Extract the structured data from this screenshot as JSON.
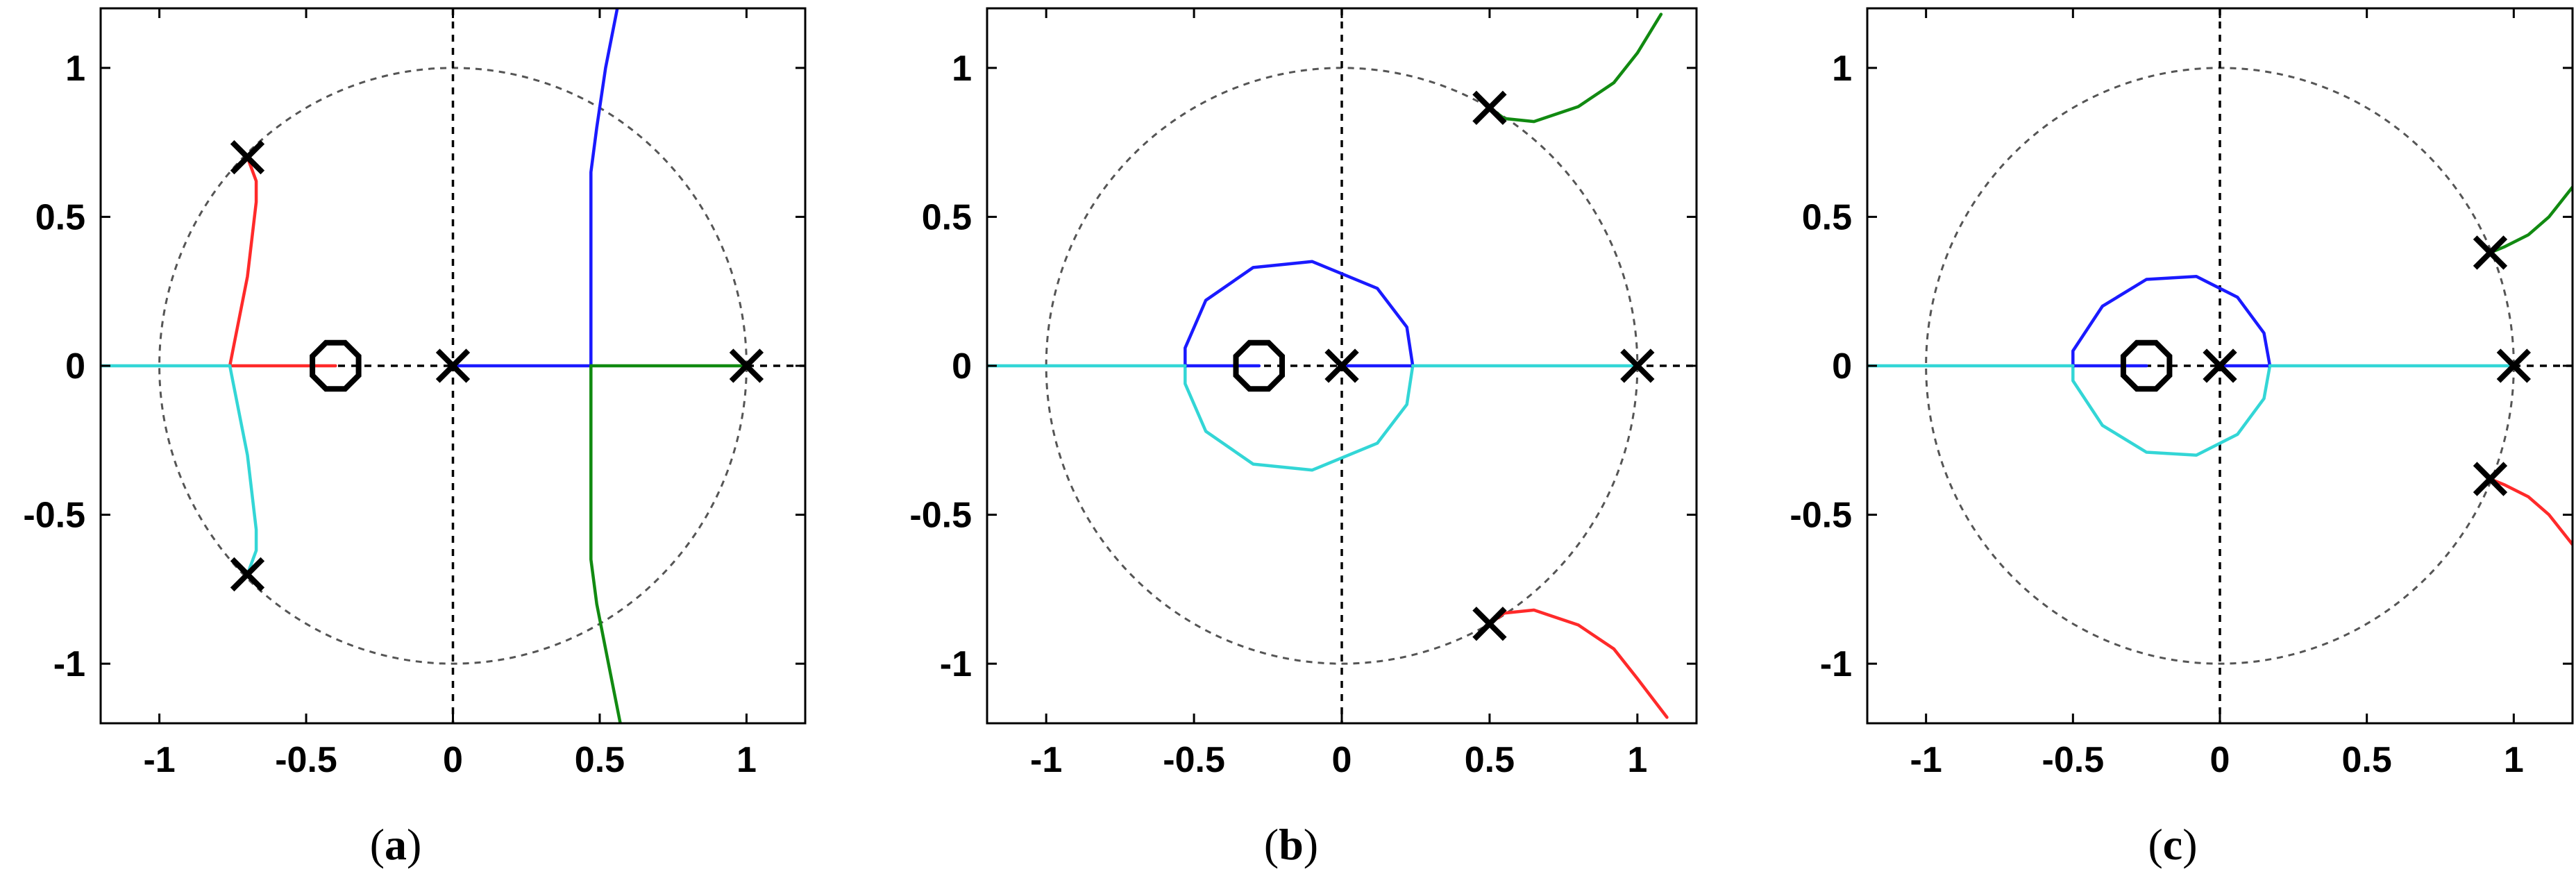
{
  "figure": {
    "colors": {
      "red": "#ff2a2a",
      "cyan": "#33d6d6",
      "blue": "#1a1aff",
      "green": "#118a11",
      "grid": "#000000",
      "unit_circle": "#555555",
      "axes_box": "#000000"
    }
  },
  "chart_data": [
    {
      "type": "line",
      "plot_kind": "root-locus",
      "caption": {
        "open": "(",
        "letter": "a",
        "close": ")"
      },
      "xlim": [
        -1.2,
        1.2
      ],
      "ylim": [
        -1.2,
        1.2
      ],
      "xticks": [
        -1,
        -0.5,
        0,
        0.5,
        1
      ],
      "xtick_labels": [
        "-1",
        "-0.5",
        "0",
        "0.5",
        "1"
      ],
      "yticks": [
        1,
        0.5,
        0,
        -0.5,
        -1
      ],
      "ytick_labels": [
        "1",
        "0.5",
        "0",
        "-0.5",
        "-1"
      ],
      "unit_circle": true,
      "zero_lines": true,
      "poles": [
        [
          -0.7,
          0.7
        ],
        [
          -0.7,
          -0.7
        ],
        [
          0,
          0
        ],
        [
          1,
          0
        ]
      ],
      "zeros": [
        [
          -0.4,
          0
        ]
      ],
      "series": [
        {
          "color_key": "red",
          "points": [
            [
              -0.7,
              0.7
            ],
            [
              -0.67,
              0.62
            ],
            [
              -0.67,
              0.55
            ],
            [
              -0.7,
              0.3
            ],
            [
              -0.75,
              0.05
            ],
            [
              -0.76,
              0
            ],
            [
              -0.4,
              0
            ]
          ]
        },
        {
          "color_key": "cyan",
          "points": [
            [
              -0.7,
              -0.7
            ],
            [
              -0.67,
              -0.62
            ],
            [
              -0.67,
              -0.55
            ],
            [
              -0.7,
              -0.3
            ],
            [
              -0.75,
              -0.05
            ],
            [
              -0.76,
              0
            ],
            [
              -1.2,
              0
            ]
          ]
        },
        {
          "color_key": "blue",
          "points": [
            [
              0,
              0
            ],
            [
              0.47,
              0
            ],
            [
              0.47,
              0.2
            ],
            [
              0.47,
              0.65
            ],
            [
              0.49,
              0.8
            ],
            [
              0.52,
              1.0
            ],
            [
              0.56,
              1.2
            ]
          ]
        },
        {
          "color_key": "green",
          "points": [
            [
              1,
              0
            ],
            [
              0.47,
              0
            ],
            [
              0.47,
              -0.2
            ],
            [
              0.47,
              -0.65
            ],
            [
              0.49,
              -0.8
            ],
            [
              0.53,
              -1.0
            ],
            [
              0.57,
              -1.2
            ]
          ]
        }
      ]
    },
    {
      "type": "line",
      "plot_kind": "root-locus",
      "caption": {
        "open": "(",
        "letter": "b",
        "close": ")"
      },
      "xlim": [
        -1.2,
        1.2
      ],
      "ylim": [
        -1.2,
        1.2
      ],
      "xticks": [
        -1,
        -0.5,
        0,
        0.5,
        1
      ],
      "xtick_labels": [
        "-1",
        "-0.5",
        "0",
        "0.5",
        "1"
      ],
      "yticks": [
        1,
        0.5,
        0,
        -0.5,
        -1
      ],
      "ytick_labels": [
        "1",
        "0.5",
        "0",
        "-0.5",
        "-1"
      ],
      "unit_circle": true,
      "zero_lines": true,
      "poles": [
        [
          0.5,
          0.866
        ],
        [
          0.5,
          -0.866
        ],
        [
          0,
          0
        ],
        [
          1,
          0
        ]
      ],
      "zeros": [
        [
          -0.28,
          0
        ]
      ],
      "series": [
        {
          "color_key": "blue",
          "points": [
            [
              0.24,
              0
            ],
            [
              0.22,
              0.13
            ],
            [
              0.12,
              0.26
            ],
            [
              -0.1,
              0.35
            ],
            [
              -0.3,
              0.33
            ],
            [
              -0.46,
              0.22
            ],
            [
              -0.53,
              0.06
            ],
            [
              -0.53,
              0
            ]
          ]
        },
        {
          "color_key": "cyan",
          "points": [
            [
              0.24,
              0
            ],
            [
              0.22,
              -0.13
            ],
            [
              0.12,
              -0.26
            ],
            [
              -0.1,
              -0.35
            ],
            [
              -0.3,
              -0.33
            ],
            [
              -0.46,
              -0.22
            ],
            [
              -0.53,
              -0.06
            ],
            [
              -0.53,
              0
            ]
          ]
        },
        {
          "color_key": "blue",
          "points": [
            [
              0,
              0
            ],
            [
              0.24,
              0
            ]
          ]
        },
        {
          "color_key": "blue",
          "points": [
            [
              -0.53,
              0
            ],
            [
              -0.28,
              0
            ]
          ]
        },
        {
          "color_key": "cyan",
          "points": [
            [
              -1.2,
              0
            ],
            [
              -0.53,
              0
            ]
          ]
        },
        {
          "color_key": "cyan",
          "points": [
            [
              0.24,
              0
            ],
            [
              1,
              0
            ]
          ]
        },
        {
          "color_key": "green",
          "points": [
            [
              0.5,
              0.866
            ],
            [
              0.55,
              0.83
            ],
            [
              0.65,
              0.82
            ],
            [
              0.8,
              0.87
            ],
            [
              0.92,
              0.95
            ],
            [
              1.0,
              1.05
            ],
            [
              1.08,
              1.18
            ]
          ]
        },
        {
          "color_key": "red",
          "points": [
            [
              0.5,
              -0.866
            ],
            [
              0.55,
              -0.83
            ],
            [
              0.65,
              -0.82
            ],
            [
              0.8,
              -0.87
            ],
            [
              0.92,
              -0.95
            ],
            [
              1.0,
              -1.05
            ],
            [
              1.1,
              -1.18
            ]
          ]
        }
      ]
    },
    {
      "type": "line",
      "plot_kind": "root-locus",
      "caption": {
        "open": "(",
        "letter": "c",
        "close": ")"
      },
      "xlim": [
        -1.2,
        1.2
      ],
      "ylim": [
        -1.2,
        1.2
      ],
      "xticks": [
        -1,
        -0.5,
        0,
        0.5,
        1
      ],
      "xtick_labels": [
        "-1",
        "-0.5",
        "0",
        "0.5",
        "1"
      ],
      "yticks": [
        1,
        0.5,
        0,
        -0.5,
        -1
      ],
      "ytick_labels": [
        "1",
        "0.5",
        "0",
        "-0.5",
        "-1"
      ],
      "unit_circle": true,
      "zero_lines": true,
      "poles": [
        [
          0.92,
          0.38
        ],
        [
          0.92,
          -0.38
        ],
        [
          0,
          0
        ],
        [
          1,
          0
        ]
      ],
      "zeros": [
        [
          -0.25,
          0
        ]
      ],
      "series": [
        {
          "color_key": "blue",
          "points": [
            [
              0.17,
              0
            ],
            [
              0.15,
              0.11
            ],
            [
              0.06,
              0.23
            ],
            [
              -0.08,
              0.3
            ],
            [
              -0.25,
              0.29
            ],
            [
              -0.4,
              0.2
            ],
            [
              -0.5,
              0.05
            ],
            [
              -0.5,
              0
            ]
          ]
        },
        {
          "color_key": "cyan",
          "points": [
            [
              0.17,
              0
            ],
            [
              0.15,
              -0.11
            ],
            [
              0.06,
              -0.23
            ],
            [
              -0.08,
              -0.3
            ],
            [
              -0.25,
              -0.29
            ],
            [
              -0.4,
              -0.2
            ],
            [
              -0.5,
              -0.05
            ],
            [
              -0.5,
              0
            ]
          ]
        },
        {
          "color_key": "blue",
          "points": [
            [
              0,
              0
            ],
            [
              0.17,
              0
            ]
          ]
        },
        {
          "color_key": "blue",
          "points": [
            [
              -0.5,
              0
            ],
            [
              -0.25,
              0
            ]
          ]
        },
        {
          "color_key": "cyan",
          "points": [
            [
              -1.2,
              0
            ],
            [
              -0.5,
              0
            ]
          ]
        },
        {
          "color_key": "cyan",
          "points": [
            [
              0.17,
              0
            ],
            [
              1,
              0
            ]
          ]
        },
        {
          "color_key": "green",
          "points": [
            [
              0.92,
              0.38
            ],
            [
              0.97,
              0.4
            ],
            [
              1.05,
              0.44
            ],
            [
              1.12,
              0.5
            ],
            [
              1.2,
              0.6
            ]
          ]
        },
        {
          "color_key": "red",
          "points": [
            [
              0.92,
              -0.38
            ],
            [
              0.97,
              -0.4
            ],
            [
              1.05,
              -0.44
            ],
            [
              1.12,
              -0.5
            ],
            [
              1.2,
              -0.6
            ]
          ]
        }
      ]
    }
  ]
}
